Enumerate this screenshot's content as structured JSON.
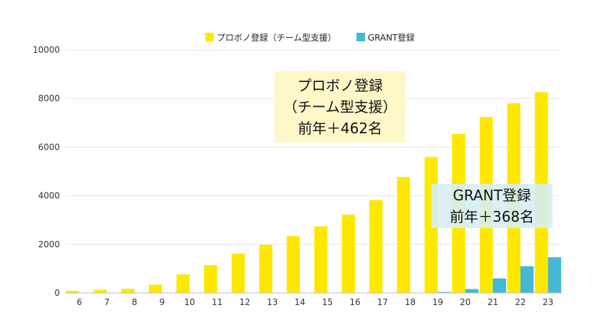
{
  "chart_data": {
    "type": "bar",
    "categories": [
      "6",
      "7",
      "8",
      "9",
      "10",
      "11",
      "12",
      "13",
      "14",
      "15",
      "16",
      "17",
      "18",
      "19",
      "20",
      "21",
      "22",
      "23"
    ],
    "series": [
      {
        "name": "プロボノ登録（チーム型支援）",
        "color": "#FFE800",
        "values": [
          90,
          130,
          170,
          340,
          760,
          1140,
          1620,
          1980,
          2340,
          2740,
          3220,
          3820,
          4770,
          5590,
          6540,
          7240,
          7800,
          8260
        ]
      },
      {
        "name": "GRANT登録",
        "color": "#44B8D4",
        "values": [
          0,
          0,
          0,
          0,
          0,
          0,
          0,
          0,
          0,
          0,
          0,
          0,
          0,
          40,
          160,
          600,
          1100,
          1470
        ]
      }
    ],
    "ylim": [
      0,
      10000
    ],
    "yticks": [
      0,
      2000,
      4000,
      6000,
      8000,
      10000
    ],
    "grid": true,
    "legend_position": "top-center",
    "annotations": [
      {
        "lines": [
          "プロボノ登録",
          "（チーム型支援）",
          "前年＋462名"
        ],
        "background": "#FFF7C8"
      },
      {
        "lines": [
          "GRANT登録",
          "前年＋368名"
        ],
        "background": "#D6EEF4"
      }
    ]
  }
}
